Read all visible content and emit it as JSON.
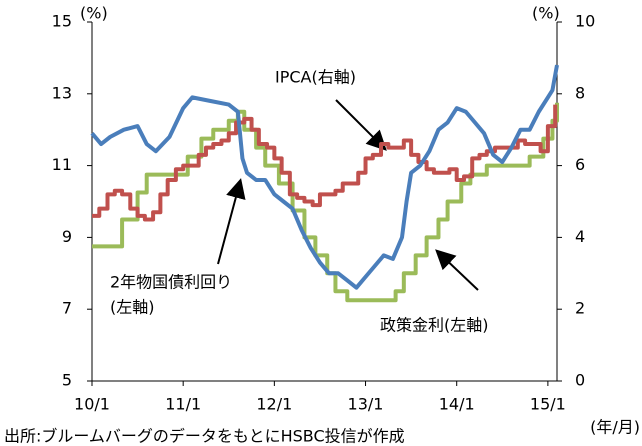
{
  "chart_data": {
    "type": "line",
    "xticks": [
      {
        "value": 2010,
        "label": "10/1"
      },
      {
        "value": 2011,
        "label": "11/1"
      },
      {
        "value": 2012,
        "label": "12/1"
      },
      {
        "value": 2013,
        "label": "13/1"
      },
      {
        "value": 2014,
        "label": "14/1"
      },
      {
        "value": 2015,
        "label": "15/1"
      }
    ],
    "xlim": [
      2010,
      2015.1
    ],
    "ylim": [
      5,
      15
    ],
    "yticks": [
      5,
      7,
      9,
      11,
      13,
      15
    ],
    "y2lim": [
      0,
      10
    ],
    "y2ticks": [
      0,
      2,
      4,
      6,
      8,
      10
    ],
    "y_unit": "(%)",
    "y2_unit": "(%)",
    "x_unit": "(年/月)",
    "annotations": [
      "IPCA(右軸)",
      "2年物国債利回り",
      "(左軸)",
      "政策金利(左軸)"
    ],
    "source": "出所:ブルームバーグのデータをもとにHSBC投信が作成",
    "series": [
      {
        "name": "2年物国債利回り",
        "color": "#4a7ebb",
        "step": false,
        "x": [
          2010,
          2010.1,
          2010.2,
          2010.35,
          2010.5,
          2010.6,
          2010.7,
          2010.85,
          2011,
          2011.1,
          2011.3,
          2011.5,
          2011.6,
          2011.65,
          2011.7,
          2011.8,
          2011.9,
          2012,
          2012.1,
          2012.2,
          2012.3,
          2012.4,
          2012.5,
          2012.6,
          2012.7,
          2012.8,
          2012.9,
          2013,
          2013.1,
          2013.2,
          2013.3,
          2013.4,
          2013.45,
          2013.5,
          2013.6,
          2013.7,
          2013.8,
          2013.9,
          2014,
          2014.1,
          2014.2,
          2014.3,
          2014.4,
          2014.5,
          2014.6,
          2014.7,
          2014.8,
          2014.9,
          2015,
          2015.05,
          2015.1
        ],
        "values": [
          11.9,
          11.6,
          11.8,
          12.0,
          12.1,
          11.6,
          11.4,
          11.8,
          12.6,
          12.9,
          12.8,
          12.7,
          12.5,
          11.2,
          10.8,
          10.6,
          10.6,
          10.2,
          10.0,
          9.8,
          9.2,
          8.7,
          8.3,
          8.0,
          8.0,
          7.8,
          7.6,
          7.9,
          8.2,
          8.5,
          8.4,
          9.0,
          10.0,
          10.8,
          11.0,
          11.4,
          12.0,
          12.2,
          12.6,
          12.5,
          12.2,
          11.9,
          11.3,
          11.1,
          11.5,
          12.0,
          12.0,
          12.5,
          12.9,
          13.1,
          13.8
        ]
      },
      {
        "name": "政策金利",
        "color": "#9bbb59",
        "step": true,
        "x": [
          2010,
          2010.33,
          2010.5,
          2010.6,
          2011.05,
          2011.2,
          2011.33,
          2011.5,
          2011.6,
          2011.67,
          2011.8,
          2011.9,
          2012.05,
          2012.2,
          2012.33,
          2012.45,
          2012.58,
          2012.67,
          2012.8,
          2013.33,
          2013.42,
          2013.55,
          2013.67,
          2013.8,
          2013.9,
          2014.05,
          2014.15,
          2014.33,
          2014.8,
          2014.95,
          2015.05,
          2015.1
        ],
        "values": [
          8.75,
          9.5,
          10.25,
          10.75,
          11.25,
          11.75,
          12.0,
          12.25,
          12.5,
          12.0,
          11.5,
          11.0,
          10.5,
          9.75,
          9.0,
          8.5,
          8.0,
          7.5,
          7.25,
          7.5,
          8.0,
          8.5,
          9.0,
          9.5,
          10.0,
          10.5,
          10.75,
          11.0,
          11.25,
          11.75,
          12.25,
          12.75
        ]
      },
      {
        "name": "IPCA",
        "color": "#c0504d",
        "step": true,
        "axis": "y2",
        "x": [
          2010,
          2010.08,
          2010.17,
          2010.25,
          2010.33,
          2010.42,
          2010.5,
          2010.58,
          2010.67,
          2010.75,
          2010.83,
          2010.92,
          2011,
          2011.08,
          2011.17,
          2011.25,
          2011.33,
          2011.42,
          2011.5,
          2011.58,
          2011.67,
          2011.75,
          2011.83,
          2011.92,
          2012,
          2012.08,
          2012.17,
          2012.25,
          2012.33,
          2012.42,
          2012.5,
          2012.58,
          2012.67,
          2012.75,
          2012.83,
          2012.92,
          2013,
          2013.08,
          2013.17,
          2013.25,
          2013.33,
          2013.42,
          2013.5,
          2013.58,
          2013.67,
          2013.75,
          2013.83,
          2013.92,
          2014,
          2014.08,
          2014.17,
          2014.25,
          2014.33,
          2014.42,
          2014.5,
          2014.58,
          2014.67,
          2014.75,
          2014.83,
          2014.92,
          2015,
          2015.08
        ],
        "values": [
          4.6,
          4.8,
          5.2,
          5.3,
          5.2,
          4.8,
          4.6,
          4.5,
          4.7,
          5.2,
          5.6,
          5.9,
          6.0,
          6.0,
          6.3,
          6.5,
          6.6,
          6.7,
          6.9,
          7.2,
          7.3,
          7.0,
          6.6,
          6.5,
          6.2,
          5.8,
          5.2,
          5.1,
          5.0,
          4.9,
          5.2,
          5.2,
          5.3,
          5.5,
          5.5,
          5.8,
          6.2,
          6.3,
          6.6,
          6.5,
          6.5,
          6.7,
          6.3,
          6.1,
          5.9,
          5.8,
          5.8,
          5.9,
          5.6,
          5.7,
          6.2,
          6.3,
          6.4,
          6.5,
          6.5,
          6.5,
          6.7,
          6.6,
          6.6,
          6.4,
          7.1,
          7.7
        ]
      }
    ]
  }
}
